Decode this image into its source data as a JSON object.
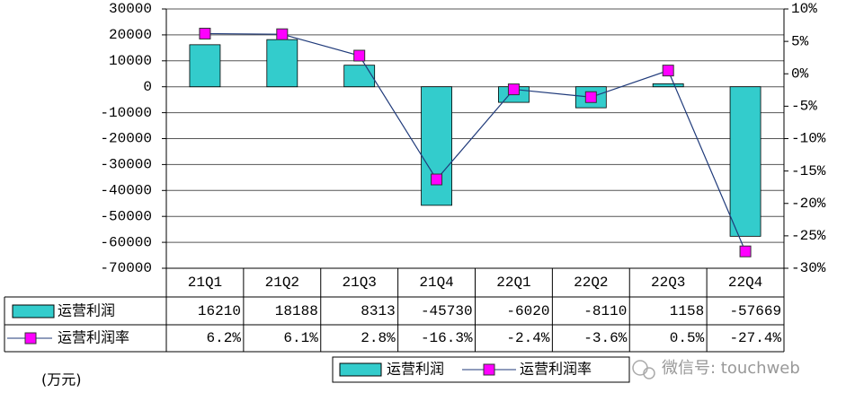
{
  "chart_data": {
    "type": "bar",
    "categories": [
      "21Q1",
      "21Q2",
      "21Q3",
      "21Q4",
      "22Q1",
      "22Q2",
      "22Q3",
      "22Q4"
    ],
    "series": [
      {
        "name": "运营利润",
        "color": "#33cccc",
        "values": [
          16210,
          18188,
          8313,
          -45730,
          -6020,
          -8110,
          1158,
          -57669
        ]
      },
      {
        "name": "运营利润率",
        "type": "line",
        "axis": "y2",
        "color": "#ff00ff",
        "line_color": "#1f3a7a",
        "values": [
          6.2,
          6.1,
          2.8,
          -16.3,
          -2.4,
          -3.6,
          0.5,
          -27.4
        ],
        "value_labels": [
          "6.2%",
          "6.1%",
          "2.8%",
          "-16.3%",
          "-2.4%",
          "-3.6%",
          "0.5%",
          "-27.4%"
        ]
      }
    ],
    "ylim": [
      -70000,
      30000
    ],
    "yticks": [
      -70000,
      -60000,
      -50000,
      -40000,
      -30000,
      -20000,
      -10000,
      0,
      10000,
      20000,
      30000
    ],
    "y2lim": [
      -30,
      10
    ],
    "y2ticks": [
      {
        "value": -30,
        "label": "-30%"
      },
      {
        "value": -25,
        "label": "-25%"
      },
      {
        "value": -20,
        "label": "-20%"
      },
      {
        "value": -15,
        "label": "-15%"
      },
      {
        "value": -10,
        "label": "-10%"
      },
      {
        "value": -5,
        "label": "-5%"
      },
      {
        "value": 0,
        "label": "0%"
      },
      {
        "value": 5,
        "label": "5%"
      },
      {
        "value": 10,
        "label": "10%"
      }
    ],
    "grid": true,
    "unit_note": "(万元)",
    "watermark": "微信号: touchweb"
  }
}
